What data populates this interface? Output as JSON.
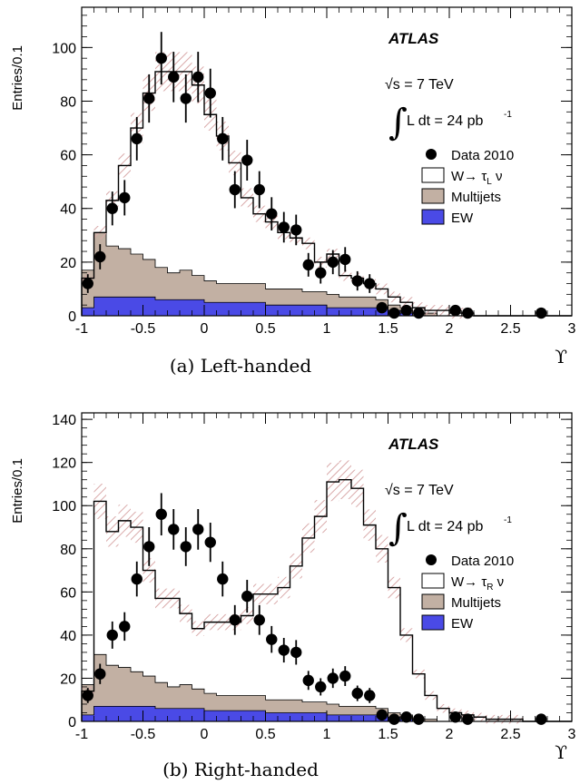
{
  "chart_data": [
    {
      "type": "histogram",
      "caption": "(a)  Left-handed",
      "ylabel": "Entries/0.1",
      "xlabel": "ϒ",
      "experiment": "ATLAS",
      "energy_label": "√s = 7 TeV",
      "lumi_label": "L dt = 24 pb",
      "lumi_exp": "-1",
      "xlim": [
        -1,
        3
      ],
      "ylim": [
        0,
        115
      ],
      "xticks": [
        -1,
        -0.5,
        0,
        0.5,
        1,
        1.5,
        2,
        2.5,
        3
      ],
      "xtick_labels": [
        "-1",
        "-0.5",
        "0",
        "0.5",
        "1",
        "1.5",
        "2",
        "2.5",
        "3"
      ],
      "yticks": [
        0,
        20,
        40,
        60,
        80,
        100
      ],
      "bin_width": 0.1,
      "legend": [
        {
          "label": "Data 2010",
          "kind": "marker"
        },
        {
          "label": "W→ τ",
          "sub": "L",
          "tail": " ν",
          "kind": "signal"
        },
        {
          "label": "Multijets",
          "kind": "multijet"
        },
        {
          "label": "EW",
          "kind": "ew"
        }
      ],
      "ew": [
        3,
        7,
        7,
        7,
        7,
        7,
        6,
        6,
        6,
        6,
        5,
        5,
        5,
        5,
        5,
        4,
        4,
        4,
        4,
        4,
        3,
        3,
        3,
        3,
        3,
        2,
        1,
        0,
        0,
        0,
        0,
        0,
        0,
        0,
        0,
        0,
        0,
        0,
        0,
        0
      ],
      "multijet": [
        14,
        24,
        19,
        18,
        16,
        14,
        12,
        10,
        11,
        9,
        8,
        7,
        7,
        7,
        7,
        6,
        6,
        6,
        5,
        5,
        5,
        4,
        4,
        4,
        3,
        2,
        2,
        1,
        1,
        0,
        0,
        0,
        0,
        0,
        0,
        0,
        0,
        0,
        0,
        0
      ],
      "total": [
        14,
        31,
        43,
        56,
        70,
        83,
        91,
        91,
        91,
        86,
        75,
        67,
        57,
        44,
        38,
        35,
        31,
        29,
        27,
        20,
        23,
        15,
        14,
        12,
        10,
        7,
        5,
        3,
        2,
        2,
        1,
        1,
        0,
        0,
        0,
        0,
        0,
        0,
        0,
        0
      ],
      "points": [
        {
          "x": -0.95,
          "y": 12,
          "err": 3.5
        },
        {
          "x": -0.85,
          "y": 22,
          "err": 4.7
        },
        {
          "x": -0.75,
          "y": 40,
          "err": 6.3
        },
        {
          "x": -0.65,
          "y": 44,
          "err": 6.6
        },
        {
          "x": -0.55,
          "y": 66,
          "err": 8.1
        },
        {
          "x": -0.45,
          "y": 81,
          "err": 9.0
        },
        {
          "x": -0.35,
          "y": 96,
          "err": 9.8
        },
        {
          "x": -0.25,
          "y": 89,
          "err": 9.4
        },
        {
          "x": -0.15,
          "y": 81,
          "err": 9.0
        },
        {
          "x": -0.05,
          "y": 89,
          "err": 9.4
        },
        {
          "x": 0.05,
          "y": 83,
          "err": 9.1
        },
        {
          "x": 0.15,
          "y": 66,
          "err": 8.1
        },
        {
          "x": 0.25,
          "y": 47,
          "err": 6.9
        },
        {
          "x": 0.35,
          "y": 58,
          "err": 7.6
        },
        {
          "x": 0.45,
          "y": 47,
          "err": 6.9
        },
        {
          "x": 0.55,
          "y": 38,
          "err": 6.2
        },
        {
          "x": 0.65,
          "y": 33,
          "err": 5.7
        },
        {
          "x": 0.75,
          "y": 32,
          "err": 5.7
        },
        {
          "x": 0.85,
          "y": 19,
          "err": 4.4
        },
        {
          "x": 0.95,
          "y": 16,
          "err": 4.0
        },
        {
          "x": 1.05,
          "y": 20,
          "err": 4.5
        },
        {
          "x": 1.15,
          "y": 21,
          "err": 4.6
        },
        {
          "x": 1.25,
          "y": 13,
          "err": 3.6
        },
        {
          "x": 1.35,
          "y": 12,
          "err": 3.5
        },
        {
          "x": 1.45,
          "y": 3,
          "err": 1.7
        },
        {
          "x": 1.55,
          "y": 1,
          "err": 1.0
        },
        {
          "x": 1.65,
          "y": 2,
          "err": 1.4
        },
        {
          "x": 1.75,
          "y": 1,
          "err": 1.0
        },
        {
          "x": 2.05,
          "y": 2,
          "err": 1.4
        },
        {
          "x": 2.15,
          "y": 1,
          "err": 1.0
        },
        {
          "x": 2.75,
          "y": 1,
          "err": 1.0
        }
      ]
    },
    {
      "type": "histogram",
      "caption": "(b)  Right-handed",
      "ylabel": "Entries/0.1",
      "xlabel": "ϒ",
      "experiment": "ATLAS",
      "energy_label": "√s = 7 TeV",
      "lumi_label": "L dt = 24 pb",
      "lumi_exp": "-1",
      "xlim": [
        -1,
        3
      ],
      "ylim": [
        0,
        143
      ],
      "xticks": [
        -1,
        -0.5,
        0,
        0.5,
        1,
        1.5,
        2,
        2.5,
        3
      ],
      "xtick_labels": [
        "-1",
        "-0.5",
        "0",
        "0.5",
        "1",
        "1.5",
        "2",
        "2.5",
        "3"
      ],
      "yticks": [
        0,
        20,
        40,
        60,
        80,
        100,
        120,
        140
      ],
      "bin_width": 0.1,
      "legend": [
        {
          "label": "Data 2010",
          "kind": "marker"
        },
        {
          "label": "W→ τ",
          "sub": "R",
          "tail": " ν",
          "kind": "signal"
        },
        {
          "label": "Multijets",
          "kind": "multijet"
        },
        {
          "label": "EW",
          "kind": "ew"
        }
      ],
      "ew": [
        3,
        7,
        7,
        7,
        7,
        7,
        6,
        6,
        6,
        6,
        5,
        5,
        5,
        5,
        5,
        4,
        4,
        4,
        4,
        4,
        3,
        3,
        3,
        3,
        3,
        2,
        1,
        0,
        0,
        0,
        0,
        0,
        0,
        0,
        0,
        0,
        0,
        0,
        0,
        0
      ],
      "multijet": [
        14,
        24,
        19,
        18,
        16,
        14,
        12,
        10,
        11,
        9,
        8,
        7,
        7,
        7,
        7,
        6,
        6,
        6,
        5,
        5,
        5,
        4,
        4,
        4,
        3,
        2,
        2,
        1,
        1,
        0,
        0,
        0,
        0,
        0,
        0,
        0,
        0,
        0,
        0,
        0
      ],
      "total": [
        14,
        102,
        88,
        93,
        90,
        70,
        57,
        57,
        50,
        43,
        46,
        46,
        46,
        49,
        59,
        59,
        62,
        72,
        85,
        95,
        111,
        112,
        108,
        91,
        80,
        62,
        40,
        22,
        12,
        6,
        4,
        3,
        2,
        1,
        1,
        1,
        0,
        0,
        0,
        0
      ],
      "points": [
        {
          "x": -0.95,
          "y": 12,
          "err": 3.5
        },
        {
          "x": -0.85,
          "y": 22,
          "err": 4.7
        },
        {
          "x": -0.75,
          "y": 40,
          "err": 6.3
        },
        {
          "x": -0.65,
          "y": 44,
          "err": 6.6
        },
        {
          "x": -0.55,
          "y": 66,
          "err": 8.1
        },
        {
          "x": -0.45,
          "y": 81,
          "err": 9.0
        },
        {
          "x": -0.35,
          "y": 96,
          "err": 9.8
        },
        {
          "x": -0.25,
          "y": 89,
          "err": 9.4
        },
        {
          "x": -0.15,
          "y": 81,
          "err": 9.0
        },
        {
          "x": -0.05,
          "y": 89,
          "err": 9.4
        },
        {
          "x": 0.05,
          "y": 83,
          "err": 9.1
        },
        {
          "x": 0.15,
          "y": 66,
          "err": 8.1
        },
        {
          "x": 0.25,
          "y": 47,
          "err": 6.9
        },
        {
          "x": 0.35,
          "y": 58,
          "err": 7.6
        },
        {
          "x": 0.45,
          "y": 47,
          "err": 6.9
        },
        {
          "x": 0.55,
          "y": 38,
          "err": 6.2
        },
        {
          "x": 0.65,
          "y": 33,
          "err": 5.7
        },
        {
          "x": 0.75,
          "y": 32,
          "err": 5.7
        },
        {
          "x": 0.85,
          "y": 19,
          "err": 4.4
        },
        {
          "x": 0.95,
          "y": 16,
          "err": 4.0
        },
        {
          "x": 1.05,
          "y": 20,
          "err": 4.5
        },
        {
          "x": 1.15,
          "y": 21,
          "err": 4.6
        },
        {
          "x": 1.25,
          "y": 13,
          "err": 3.6
        },
        {
          "x": 1.35,
          "y": 12,
          "err": 3.5
        },
        {
          "x": 1.45,
          "y": 3,
          "err": 1.7
        },
        {
          "x": 1.55,
          "y": 1,
          "err": 1.0
        },
        {
          "x": 1.65,
          "y": 2,
          "err": 1.4
        },
        {
          "x": 1.75,
          "y": 1,
          "err": 1.0
        },
        {
          "x": 2.05,
          "y": 2,
          "err": 1.4
        },
        {
          "x": 2.15,
          "y": 1,
          "err": 1.0
        },
        {
          "x": 2.75,
          "y": 1,
          "err": 1.0
        }
      ]
    }
  ],
  "colors": {
    "ew": "#4a4ae6",
    "multijet": "#c2b0a3",
    "hatch": "#e0b8b8",
    "axis": "#000000"
  }
}
